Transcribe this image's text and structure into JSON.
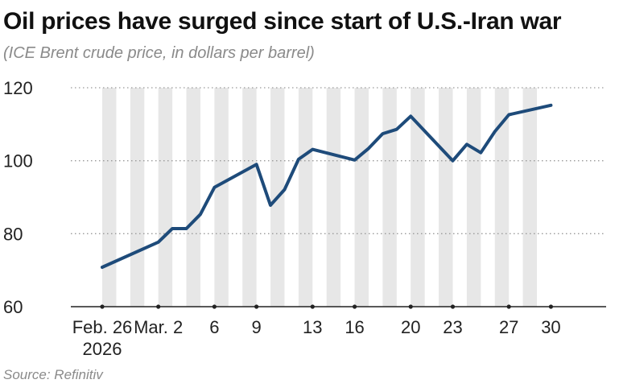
{
  "title": "Oil prices have surged since start of U.S.-Iran war",
  "subtitle": "(ICE Brent crude price, in dollars per barrel)",
  "source": "Source: Refinitiv",
  "colors": {
    "line": "#1e4b7a",
    "band": "#e7e7e7",
    "grid": "#9a9a9a",
    "axis": "#222222",
    "text": "#222222"
  },
  "chart_data": {
    "type": "line",
    "title": "Oil prices have surged since start of U.S.-Iran war",
    "ylabel": "ICE Brent crude price, in dollars per barrel",
    "xlabel": "",
    "ylim": [
      60,
      120
    ],
    "yticks": [
      60,
      80,
      100,
      120
    ],
    "grid": "horizontal dotted",
    "x_day_range": [
      0,
      35
    ],
    "x_ticks": [
      {
        "day": 0,
        "label": "Feb. 26",
        "label2": "2026"
      },
      {
        "day": 4,
        "label": "Mar. 2"
      },
      {
        "day": 8,
        "label": "6"
      },
      {
        "day": 11,
        "label": "9"
      },
      {
        "day": 15,
        "label": "13"
      },
      {
        "day": 18,
        "label": "16"
      },
      {
        "day": 22,
        "label": "20"
      },
      {
        "day": 25,
        "label": "23"
      },
      {
        "day": 29,
        "label": "27"
      },
      {
        "day": 32,
        "label": "30"
      }
    ],
    "weekday_bands": [
      [
        0,
        1
      ],
      [
        2,
        3
      ],
      [
        4,
        5
      ],
      [
        6,
        7
      ],
      [
        8,
        9
      ],
      [
        10,
        11
      ],
      [
        12,
        13
      ],
      [
        14,
        15
      ],
      [
        16,
        17
      ],
      [
        18,
        19
      ],
      [
        20,
        21
      ],
      [
        22,
        23
      ],
      [
        24,
        25
      ],
      [
        26,
        27
      ],
      [
        28,
        29
      ],
      [
        30,
        31
      ]
    ],
    "series": [
      {
        "name": "ICE Brent crude",
        "points": [
          {
            "day": 0,
            "value": 70.8
          },
          {
            "day": 4,
            "value": 77.7
          },
          {
            "day": 5,
            "value": 81.4
          },
          {
            "day": 6,
            "value": 81.4
          },
          {
            "day": 7,
            "value": 85.3
          },
          {
            "day": 8,
            "value": 92.7
          },
          {
            "day": 11,
            "value": 99.0
          },
          {
            "day": 12,
            "value": 87.8
          },
          {
            "day": 13,
            "value": 92.1
          },
          {
            "day": 14,
            "value": 100.4
          },
          {
            "day": 15,
            "value": 103.1
          },
          {
            "day": 18,
            "value": 100.2
          },
          {
            "day": 19,
            "value": 103.4
          },
          {
            "day": 20,
            "value": 107.4
          },
          {
            "day": 21,
            "value": 108.6
          },
          {
            "day": 22,
            "value": 112.2
          },
          {
            "day": 25,
            "value": 100.0
          },
          {
            "day": 26,
            "value": 104.5
          },
          {
            "day": 27,
            "value": 102.2
          },
          {
            "day": 28,
            "value": 108.0
          },
          {
            "day": 29,
            "value": 112.6
          },
          {
            "day": 32,
            "value": 115.2
          }
        ]
      }
    ]
  }
}
